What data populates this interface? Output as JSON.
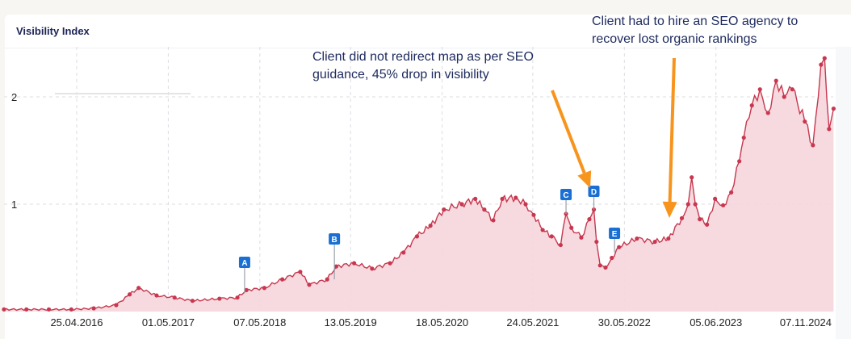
{
  "card": {
    "title": "Visibility Index"
  },
  "annotations": [
    {
      "text_lines": [
        "Client did not redirect map as per SEO",
        "guidance, 45% drop in visibility"
      ]
    },
    {
      "text_lines": [
        "Client had to hire an SEO agency to",
        "recover lost organic rankings"
      ]
    }
  ],
  "colors": {
    "line": "#c8374f",
    "fill": "#f5d6dc",
    "marker": "#1a6fd4",
    "arrow": "#f7941d",
    "title": "#1d2456"
  },
  "chart_data": {
    "type": "area",
    "title": "Visibility Index",
    "xlabel": "",
    "ylabel": "",
    "ylim": [
      0,
      2.5
    ],
    "y_ticks": [
      1,
      2
    ],
    "x_ticks": [
      {
        "label": "25.04.2016",
        "x": 2016.31
      },
      {
        "label": "01.05.2017",
        "x": 2017.33
      },
      {
        "label": "07.05.2018",
        "x": 2018.35
      },
      {
        "label": "13.05.2019",
        "x": 2019.36
      },
      {
        "label": "18.05.2020",
        "x": 2020.38
      },
      {
        "label": "24.05.2021",
        "x": 2021.39
      },
      {
        "label": "30.05.2022",
        "x": 2022.41
      },
      {
        "label": "05.06.2023",
        "x": 2023.43
      },
      {
        "label": "07.11.2024",
        "x": 2024.85
      }
    ],
    "xlim": [
      2015.5,
      2024.74
    ],
    "grid": true,
    "series": [
      {
        "name": "Visibility Index",
        "points": [
          [
            2015.5,
            0.02
          ],
          [
            2015.75,
            0.02
          ],
          [
            2016.0,
            0.02
          ],
          [
            2016.25,
            0.02
          ],
          [
            2016.5,
            0.03
          ],
          [
            2016.75,
            0.06
          ],
          [
            2016.9,
            0.16
          ],
          [
            2017.0,
            0.22
          ],
          [
            2017.2,
            0.15
          ],
          [
            2017.4,
            0.13
          ],
          [
            2017.6,
            0.1
          ],
          [
            2017.9,
            0.12
          ],
          [
            2018.1,
            0.13
          ],
          [
            2018.2,
            0.2
          ],
          [
            2018.4,
            0.22
          ],
          [
            2018.6,
            0.3
          ],
          [
            2018.8,
            0.37
          ],
          [
            2018.9,
            0.25
          ],
          [
            2019.1,
            0.3
          ],
          [
            2019.2,
            0.42
          ],
          [
            2019.4,
            0.45
          ],
          [
            2019.6,
            0.4
          ],
          [
            2019.8,
            0.45
          ],
          [
            2019.95,
            0.55
          ],
          [
            2020.1,
            0.7
          ],
          [
            2020.25,
            0.8
          ],
          [
            2020.4,
            0.95
          ],
          [
            2020.6,
            1.0
          ],
          [
            2020.75,
            1.05
          ],
          [
            2020.85,
            0.95
          ],
          [
            2020.95,
            0.85
          ],
          [
            2021.05,
            1.05
          ],
          [
            2021.2,
            1.06
          ],
          [
            2021.31,
            1.0
          ],
          [
            2021.4,
            0.9
          ],
          [
            2021.5,
            0.76
          ],
          [
            2021.6,
            0.7
          ],
          [
            2021.7,
            0.62
          ],
          [
            2021.76,
            0.91
          ],
          [
            2021.82,
            0.78
          ],
          [
            2021.93,
            0.69
          ],
          [
            2022.02,
            0.86
          ],
          [
            2022.07,
            0.95
          ],
          [
            2022.1,
            0.65
          ],
          [
            2022.14,
            0.43
          ],
          [
            2022.2,
            0.41
          ],
          [
            2022.27,
            0.5
          ],
          [
            2022.35,
            0.6
          ],
          [
            2022.55,
            0.68
          ],
          [
            2022.75,
            0.65
          ],
          [
            2022.9,
            0.68
          ],
          [
            2023.05,
            0.87
          ],
          [
            2023.12,
            1.0
          ],
          [
            2023.16,
            1.25
          ],
          [
            2023.2,
            1.0
          ],
          [
            2023.25,
            0.86
          ],
          [
            2023.33,
            0.81
          ],
          [
            2023.42,
            1.05
          ],
          [
            2023.51,
            0.99
          ],
          [
            2023.6,
            1.11
          ],
          [
            2023.69,
            1.4
          ],
          [
            2023.74,
            1.62
          ],
          [
            2023.83,
            1.92
          ],
          [
            2023.92,
            2.07
          ],
          [
            2024.01,
            1.85
          ],
          [
            2024.1,
            2.15
          ],
          [
            2024.19,
            2.0
          ],
          [
            2024.28,
            2.07
          ],
          [
            2024.42,
            1.77
          ],
          [
            2024.51,
            1.55
          ],
          [
            2024.6,
            2.3
          ],
          [
            2024.64,
            2.36
          ],
          [
            2024.69,
            1.7
          ],
          [
            2024.74,
            1.89
          ]
        ]
      }
    ],
    "event_markers": [
      {
        "label": "A",
        "x": 2018.18,
        "y": 0.17
      },
      {
        "label": "B",
        "x": 2019.18,
        "y": 0.3
      },
      {
        "label": "C",
        "x": 2021.76,
        "y": 0.91
      },
      {
        "label": "D",
        "x": 2022.07,
        "y": 0.95
      },
      {
        "label": "E",
        "x": 2022.3,
        "y": 0.55
      }
    ]
  }
}
